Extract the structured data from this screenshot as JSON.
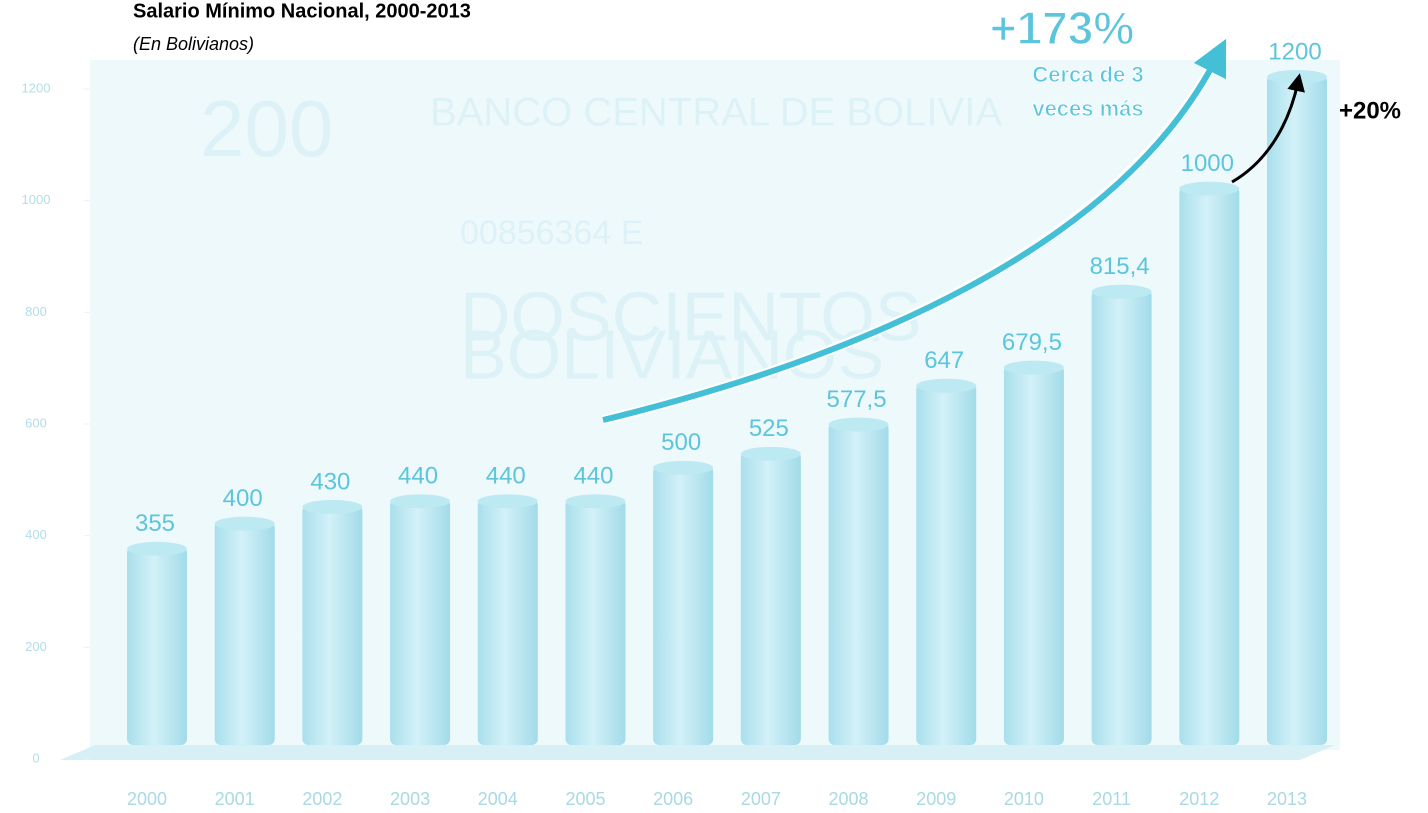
{
  "chart_data": {
    "type": "bar",
    "title": "Salario Mínimo Nacional, 2000-2013",
    "subtitle": "(En Bolivianos)",
    "categories": [
      "2000",
      "2001",
      "2002",
      "2003",
      "2004",
      "2005",
      "2006",
      "2007",
      "2008",
      "2009",
      "2010",
      "2011",
      "2012",
      "2013"
    ],
    "values": [
      355,
      400,
      430,
      440,
      440,
      440,
      500,
      525,
      577.5,
      647,
      679.5,
      815.4,
      1000,
      1200
    ],
    "value_labels": [
      "355",
      "400",
      "430",
      "440",
      "440",
      "440",
      "500",
      "525",
      "577,5",
      "647",
      "679,5",
      "815,4",
      "1000",
      "1200"
    ],
    "color": "#bde9f3",
    "label_color": "#5cc5dc",
    "ylim": [
      0,
      1200
    ],
    "yticks": [
      0,
      200,
      400,
      600,
      800,
      1000,
      1200
    ],
    "annotations": [
      "+173%",
      "Cerca de 3",
      "veces más",
      "+20%"
    ],
    "background_texts": [
      "200",
      "BANCO CENTRAL DE BOLIVIA",
      "00856364 E",
      "DOSCIENTOS",
      "BOLIVIANOS"
    ]
  }
}
